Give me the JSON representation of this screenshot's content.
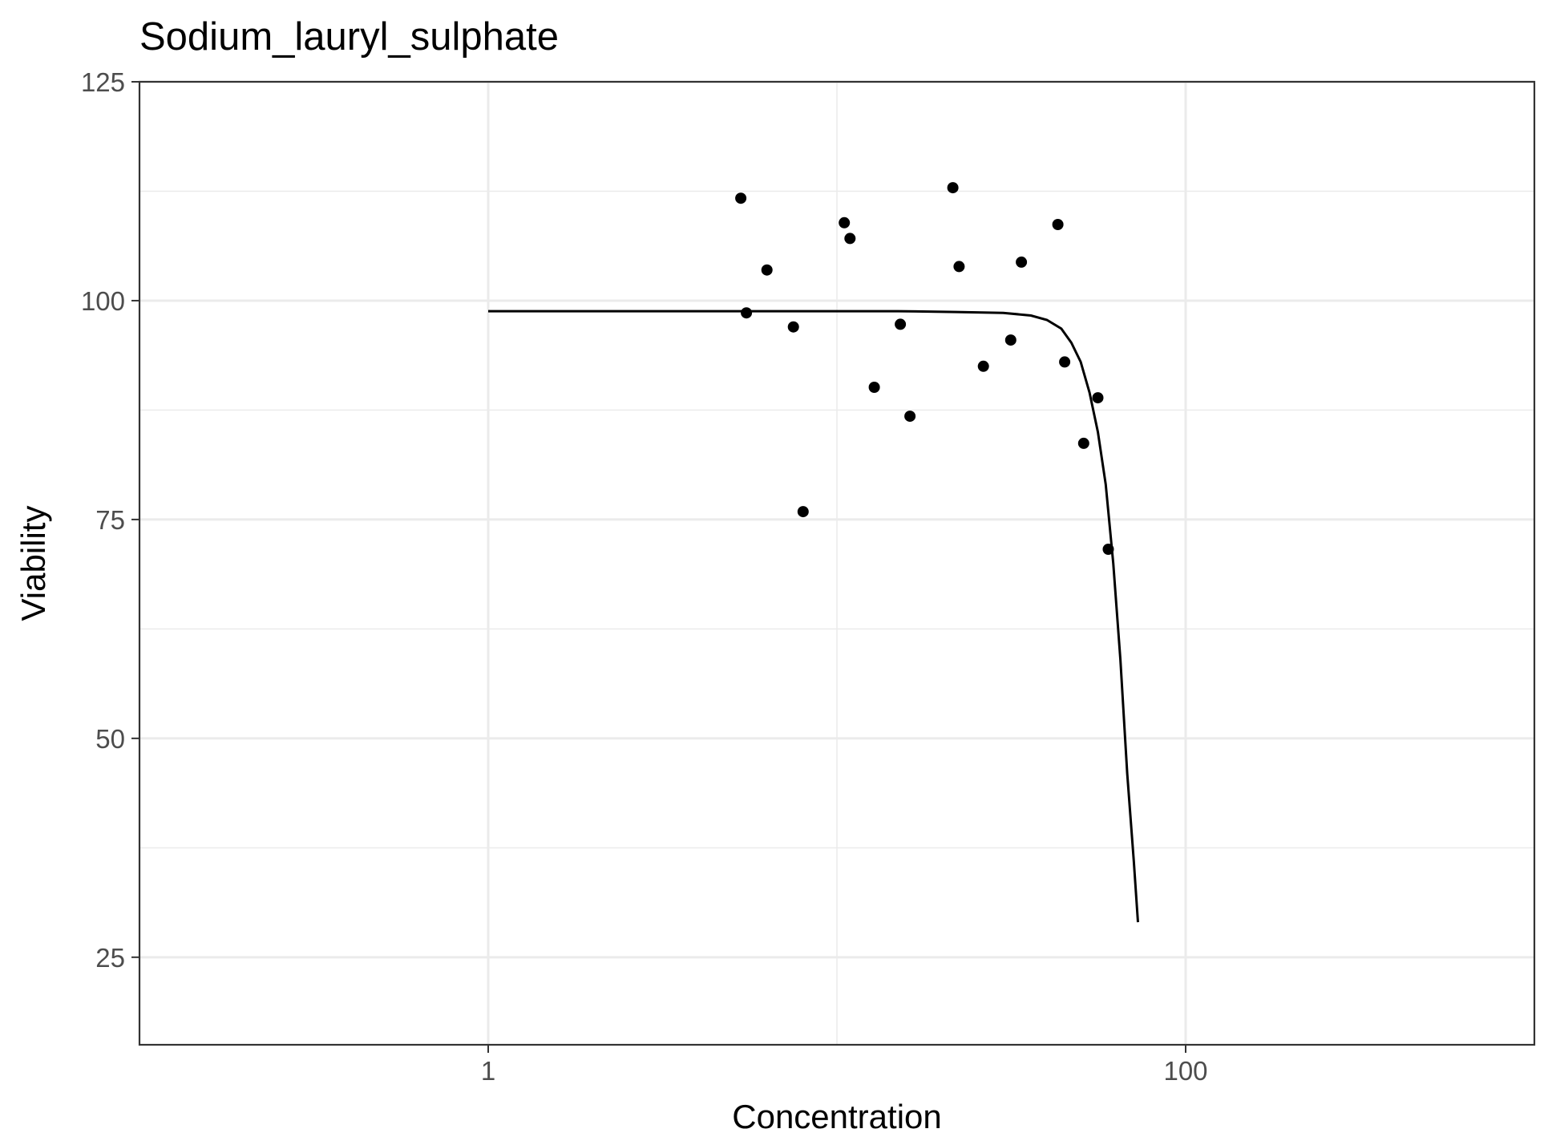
{
  "chart_data": {
    "type": "scatter",
    "title": "Sodium_lauryl_sulphate",
    "xlabel": "Concentration",
    "ylabel": "Viability",
    "x_scale": "log10",
    "xlim": [
      0.1,
      1000
    ],
    "ylim": [
      15,
      125
    ],
    "x_major_ticks": [
      1,
      100
    ],
    "x_minor_ticks": [
      0.1,
      10,
      1000
    ],
    "x_tick_labels": [
      "1",
      "100"
    ],
    "y_major_ticks": [
      25,
      50,
      75,
      100,
      125
    ],
    "y_minor_ticks": [
      37.5,
      62.5,
      87.5,
      112.5
    ],
    "y_tick_labels": [
      "25",
      "50",
      "75",
      "100",
      "125"
    ],
    "grid": true,
    "series": [
      {
        "kind": "points",
        "color": "#000000",
        "points": [
          {
            "x": 5.3,
            "y": 111.7
          },
          {
            "x": 5.5,
            "y": 98.6
          },
          {
            "x": 6.3,
            "y": 103.5
          },
          {
            "x": 7.5,
            "y": 97.0
          },
          {
            "x": 8.0,
            "y": 75.9
          },
          {
            "x": 10.5,
            "y": 108.9
          },
          {
            "x": 10.9,
            "y": 107.1
          },
          {
            "x": 12.8,
            "y": 90.1
          },
          {
            "x": 15.2,
            "y": 97.3
          },
          {
            "x": 16.2,
            "y": 86.8
          },
          {
            "x": 21.5,
            "y": 112.9
          },
          {
            "x": 22.4,
            "y": 103.9
          },
          {
            "x": 26.3,
            "y": 92.5
          },
          {
            "x": 31.5,
            "y": 95.5
          },
          {
            "x": 33.8,
            "y": 104.4
          },
          {
            "x": 43.0,
            "y": 108.7
          },
          {
            "x": 45.0,
            "y": 93.0
          },
          {
            "x": 51.0,
            "y": 83.7
          },
          {
            "x": 56.0,
            "y": 88.9
          },
          {
            "x": 60.0,
            "y": 71.6
          }
        ]
      },
      {
        "kind": "line",
        "color": "#000000",
        "points": [
          {
            "x": 1.0,
            "y": 98.8
          },
          {
            "x": 5.0,
            "y": 98.8
          },
          {
            "x": 15.0,
            "y": 98.8
          },
          {
            "x": 22.0,
            "y": 98.7
          },
          {
            "x": 30.0,
            "y": 98.6
          },
          {
            "x": 36.0,
            "y": 98.3
          },
          {
            "x": 40.0,
            "y": 97.8
          },
          {
            "x": 44.0,
            "y": 96.8
          },
          {
            "x": 47.0,
            "y": 95.2
          },
          {
            "x": 50.0,
            "y": 93.0
          },
          {
            "x": 53.0,
            "y": 89.5
          },
          {
            "x": 56.0,
            "y": 85.0
          },
          {
            "x": 59.0,
            "y": 79.0
          },
          {
            "x": 62.0,
            "y": 70.0
          },
          {
            "x": 65.0,
            "y": 59.0
          },
          {
            "x": 68.0,
            "y": 46.0
          },
          {
            "x": 71.0,
            "y": 36.0
          },
          {
            "x": 73.0,
            "y": 29.0
          }
        ]
      }
    ]
  }
}
